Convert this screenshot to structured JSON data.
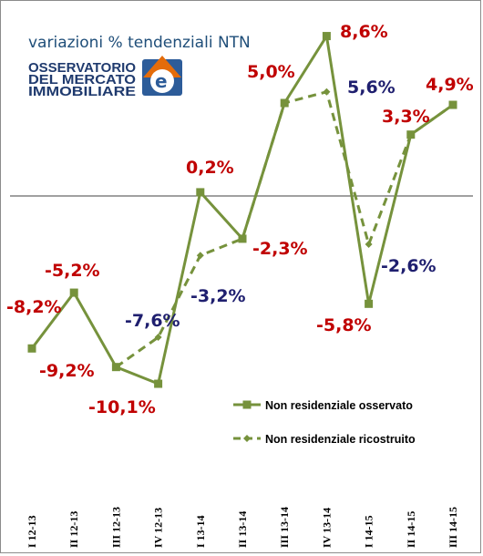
{
  "chart_data": {
    "type": "line",
    "title": "variazioni % tendenziali NTN",
    "logo_lines": [
      "OSSERVATORIO",
      "DEL MERCATO",
      "IMMOBILIARE"
    ],
    "categories": [
      "I 12-13",
      "II 12-13",
      "III 12-13",
      "IV 12-13",
      "I 13-14",
      "II 13-14",
      "III 13-14",
      "IV 13-14",
      "I 14-15",
      "II 14-15",
      "III 14-15"
    ],
    "series": [
      {
        "name": "Non residenziale osservato",
        "style": "solid",
        "marker": "square",
        "color": "#76923c",
        "values": [
          -8.2,
          -5.2,
          -9.2,
          -10.1,
          0.2,
          -2.3,
          5.0,
          8.6,
          -5.8,
          3.3,
          4.9
        ]
      },
      {
        "name": "Non residenziale ricostruito",
        "style": "dashed",
        "marker": "diamond",
        "color": "#76923c",
        "values": [
          null,
          null,
          -9.2,
          -7.6,
          -3.2,
          -2.3,
          5.0,
          5.6,
          -2.6,
          3.3,
          4.9
        ]
      }
    ],
    "data_labels": [
      {
        "text": "-8,2%",
        "color": "#c00000"
      },
      {
        "text": "-5,2%",
        "color": "#c00000"
      },
      {
        "text": "-9,2%",
        "color": "#c00000"
      },
      {
        "text": "-10,1%",
        "color": "#c00000"
      },
      {
        "text": "-7,6%",
        "color": "#1f1f6f"
      },
      {
        "text": "0,2%",
        "color": "#c00000"
      },
      {
        "text": "-3,2%",
        "color": "#1f1f6f"
      },
      {
        "text": "-2,3%",
        "color": "#c00000"
      },
      {
        "text": "5,0%",
        "color": "#c00000"
      },
      {
        "text": "8,6%",
        "color": "#c00000"
      },
      {
        "text": "5,6%",
        "color": "#1f1f6f"
      },
      {
        "text": "-5,8%",
        "color": "#c00000"
      },
      {
        "text": "-2,6%",
        "color": "#1f1f6f"
      },
      {
        "text": "3,3%",
        "color": "#c00000"
      },
      {
        "text": "4,9%",
        "color": "#c00000"
      }
    ],
    "ylim": [
      -12.4,
      10.4
    ],
    "grid": false,
    "zero_line": true,
    "legend_position": "bottom-right",
    "xlabel": "",
    "ylabel": ""
  }
}
